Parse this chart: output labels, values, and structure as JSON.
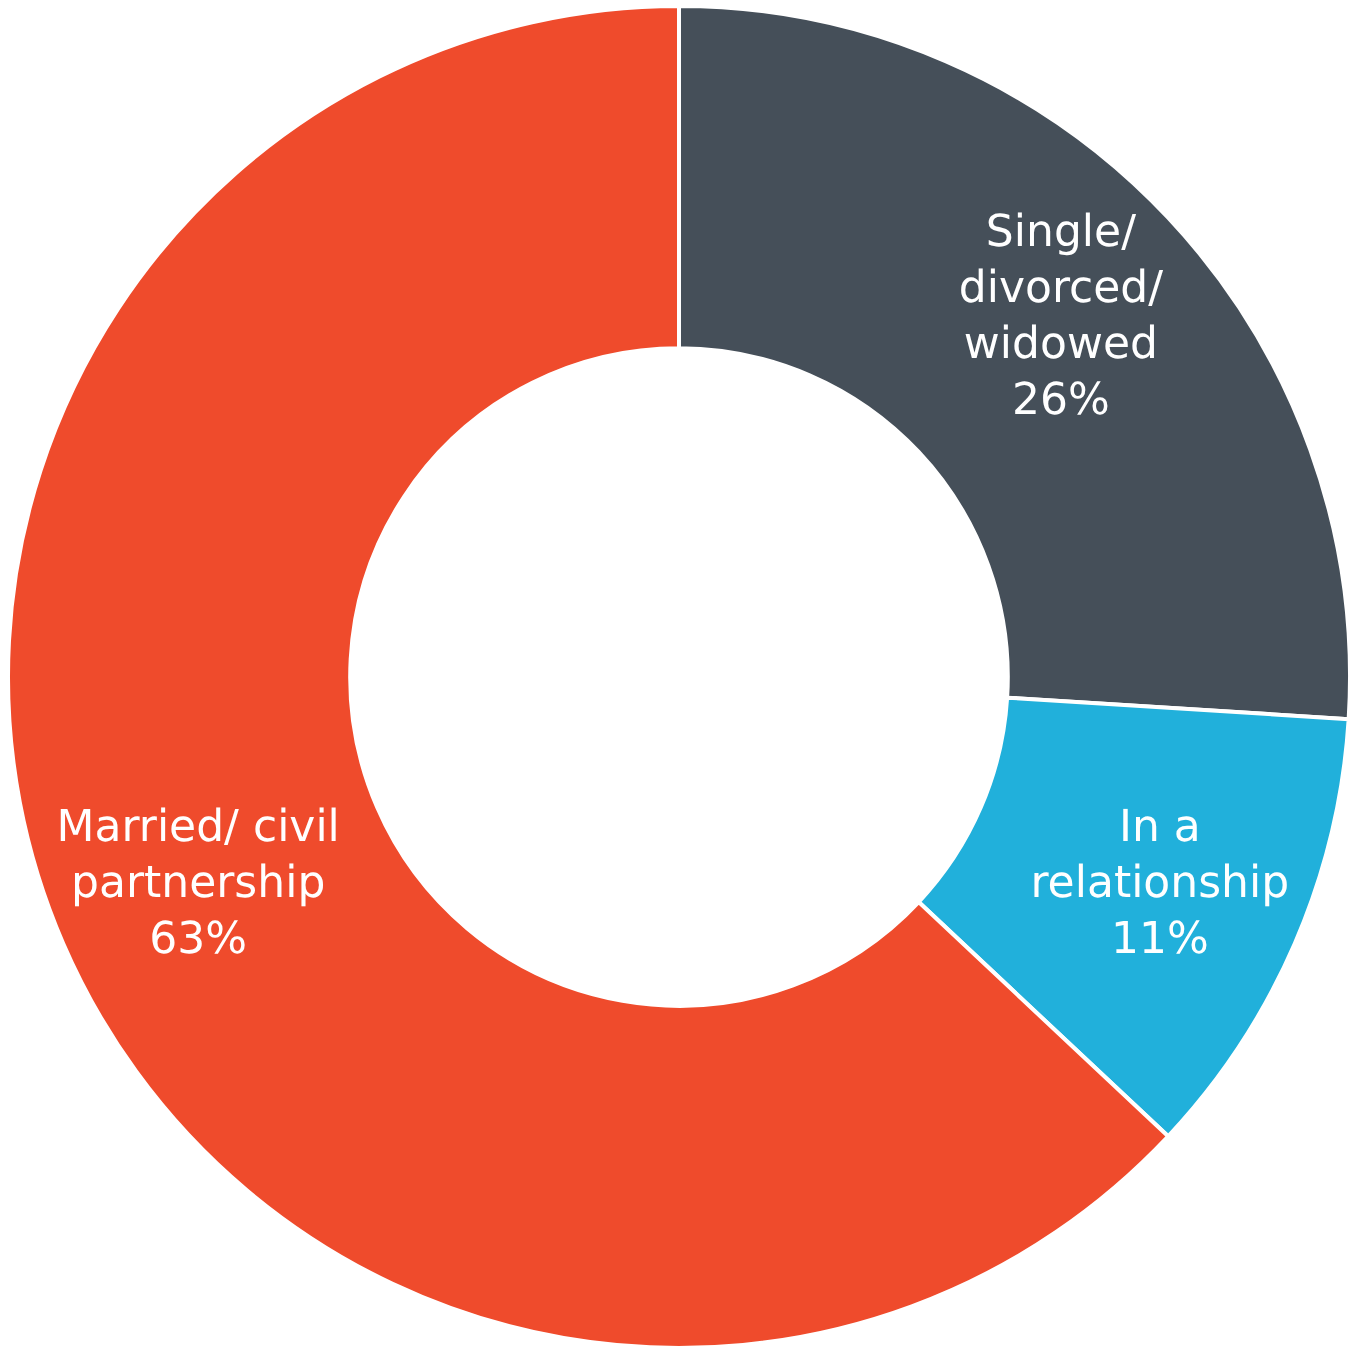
{
  "chart_data": {
    "type": "donut",
    "categories": [
      "Single/ divorced/ widowed",
      "In a relationship",
      "Married/ civil partnership"
    ],
    "values": [
      26,
      11,
      63
    ],
    "colors": [
      "#454f59",
      "#21b0db",
      "#ef4b2c"
    ],
    "value_labels": [
      "26%",
      "11%",
      "63%"
    ],
    "legend": false
  }
}
